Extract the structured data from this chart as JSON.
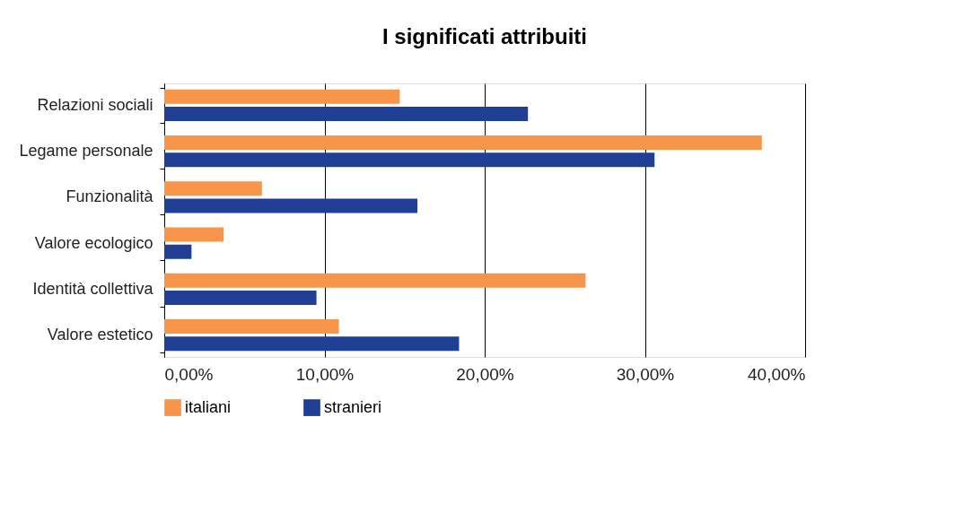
{
  "chart_data": {
    "type": "bar",
    "orientation": "horizontal",
    "title": "I significati attribuiti",
    "categories": [
      "Relazioni sociali",
      "Legame personale",
      "Funzionalità",
      "Valore ecologico",
      "Identità collettiva",
      "Valore estetico"
    ],
    "series": [
      {
        "name": "italiani",
        "color": "#f7964a",
        "values": [
          14.7,
          37.3,
          6.1,
          3.7,
          26.3,
          10.9
        ]
      },
      {
        "name": "stranieri",
        "color": "#1f3e94",
        "values": [
          22.7,
          30.6,
          15.8,
          1.7,
          9.5,
          18.4
        ]
      }
    ],
    "xlim": [
      0,
      40
    ],
    "xticks": [
      {
        "value": 0,
        "label": "0,00%"
      },
      {
        "value": 10,
        "label": "10,00%"
      },
      {
        "value": 20,
        "label": "20,00%"
      },
      {
        "value": 30,
        "label": "30,00%"
      },
      {
        "value": 40,
        "label": "40,00%"
      }
    ],
    "grid": "x",
    "legend": "bottom left"
  }
}
